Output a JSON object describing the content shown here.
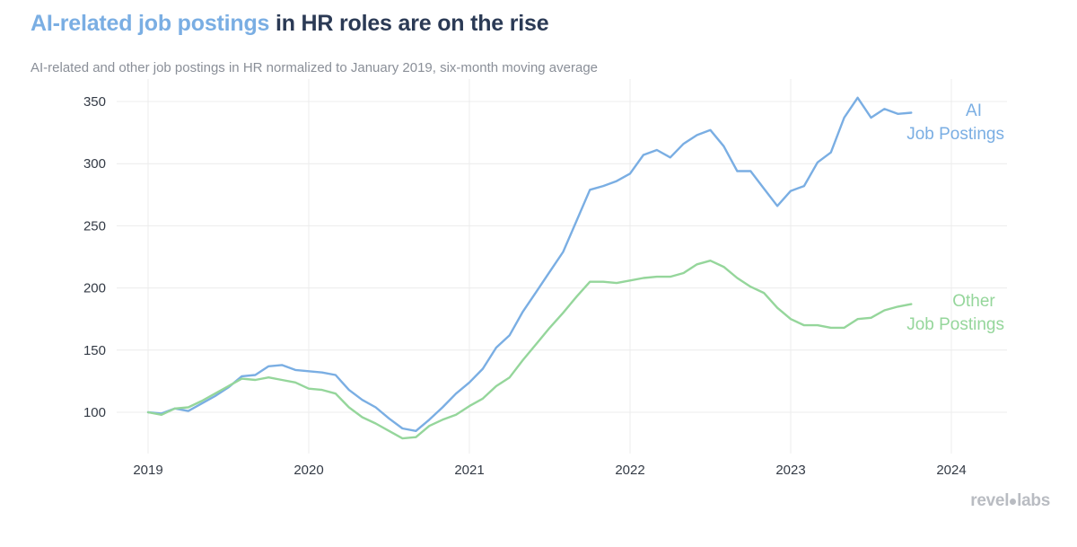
{
  "header": {
    "title_highlight": "AI-related job postings",
    "title_rest": " in HR roles are on the rise",
    "subtitle": "AI-related and other job postings in HR normalized to January 2019, six-month moving average"
  },
  "logo": {
    "part1": "revel",
    "part2": "labs"
  },
  "colors": {
    "ai": "#7aaee3",
    "other": "#95d69b",
    "grid": "#ececec",
    "tick": "#333a45"
  },
  "chart_data": {
    "type": "line",
    "title": "AI-related job postings in HR roles are on the rise",
    "subtitle": "AI-related and other job postings in HR normalized to January 2019, six-month moving average",
    "xlabel": "",
    "ylabel": "",
    "xlim": [
      2018.9,
      2024.35
    ],
    "ylim": [
      70,
      360
    ],
    "x_ticks": [
      2019,
      2020,
      2021,
      2022,
      2023,
      2024
    ],
    "x_tick_labels": [
      "2019",
      "2020",
      "2021",
      "2022",
      "2023",
      "2024"
    ],
    "y_ticks": [
      100,
      150,
      200,
      250,
      300,
      350
    ],
    "y_tick_labels": [
      "100",
      "150",
      "200",
      "250",
      "300",
      "350"
    ],
    "grid": true,
    "legend": "direct labels at right end of lines",
    "series": [
      {
        "name": "AI Job Postings",
        "label_lines": [
          "AI",
          "Job Postings"
        ],
        "color": "#7aaee3",
        "x": [
          2019.0,
          2019.083,
          2019.167,
          2019.25,
          2019.333,
          2019.417,
          2019.5,
          2019.583,
          2019.667,
          2019.75,
          2019.833,
          2019.917,
          2020.0,
          2020.083,
          2020.167,
          2020.25,
          2020.333,
          2020.417,
          2020.5,
          2020.583,
          2020.667,
          2020.75,
          2020.833,
          2020.917,
          2021.0,
          2021.083,
          2021.167,
          2021.25,
          2021.333,
          2021.417,
          2021.5,
          2021.583,
          2021.667,
          2021.75,
          2021.833,
          2021.917,
          2022.0,
          2022.083,
          2022.167,
          2022.25,
          2022.333,
          2022.417,
          2022.5,
          2022.583,
          2022.667,
          2022.75,
          2022.833,
          2022.917,
          2023.0,
          2023.083,
          2023.167,
          2023.25,
          2023.333,
          2023.417,
          2023.5,
          2023.583,
          2023.667,
          2023.75
        ],
        "values": [
          100,
          99,
          103,
          101,
          107,
          113,
          120,
          129,
          130,
          137,
          138,
          134,
          133,
          132,
          130,
          118,
          110,
          104,
          95,
          87,
          85,
          94,
          104,
          115,
          124,
          135,
          152,
          162,
          181,
          197,
          213,
          229,
          254,
          279,
          282,
          286,
          292,
          307,
          311,
          305,
          316,
          323,
          327,
          314,
          294,
          294,
          280,
          266,
          278,
          282,
          301,
          309,
          337,
          353,
          337,
          344,
          340,
          341
        ]
      },
      {
        "name": "Other Job Postings",
        "label_lines": [
          "Other",
          "Job Postings"
        ],
        "color": "#95d69b",
        "x": [
          2019.0,
          2019.083,
          2019.167,
          2019.25,
          2019.333,
          2019.417,
          2019.5,
          2019.583,
          2019.667,
          2019.75,
          2019.833,
          2019.917,
          2020.0,
          2020.083,
          2020.167,
          2020.25,
          2020.333,
          2020.417,
          2020.5,
          2020.583,
          2020.667,
          2020.75,
          2020.833,
          2020.917,
          2021.0,
          2021.083,
          2021.167,
          2021.25,
          2021.333,
          2021.417,
          2021.5,
          2021.583,
          2021.667,
          2021.75,
          2021.833,
          2021.917,
          2022.0,
          2022.083,
          2022.167,
          2022.25,
          2022.333,
          2022.417,
          2022.5,
          2022.583,
          2022.667,
          2022.75,
          2022.833,
          2022.917,
          2023.0,
          2023.083,
          2023.167,
          2023.25,
          2023.333,
          2023.417,
          2023.5,
          2023.583,
          2023.667,
          2023.75
        ],
        "values": [
          100,
          98,
          103,
          104,
          109,
          115,
          121,
          127,
          126,
          128,
          126,
          124,
          119,
          118,
          115,
          104,
          96,
          91,
          85,
          79,
          80,
          89,
          94,
          98,
          105,
          111,
          121,
          128,
          142,
          155,
          168,
          180,
          193,
          205,
          205,
          204,
          206,
          208,
          209,
          209,
          212,
          219,
          222,
          217,
          208,
          201,
          196,
          184,
          175,
          170,
          170,
          168,
          168,
          175,
          176,
          182,
          185,
          187
        ]
      }
    ]
  }
}
